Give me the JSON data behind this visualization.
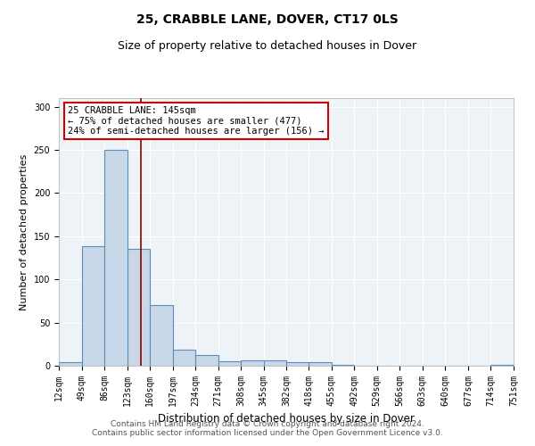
{
  "title": "25, CRABBLE LANE, DOVER, CT17 0LS",
  "subtitle": "Size of property relative to detached houses in Dover",
  "xlabel": "Distribution of detached houses by size in Dover",
  "ylabel": "Number of detached properties",
  "bin_edges": [
    12,
    49,
    86,
    123,
    160,
    197,
    234,
    271,
    308,
    345,
    382,
    418,
    455,
    492,
    529,
    566,
    603,
    640,
    677,
    714,
    751
  ],
  "bar_heights": [
    4,
    138,
    250,
    135,
    70,
    19,
    12,
    5,
    6,
    6,
    4,
    4,
    1,
    0,
    0,
    0,
    0,
    0,
    0,
    1
  ],
  "bar_color": "#c8d8e8",
  "bar_edge_color": "#5b8db8",
  "bar_linewidth": 0.8,
  "vline_x": 145,
  "vline_color": "#8b0000",
  "vline_linewidth": 1.2,
  "annotation_text": "25 CRABBLE LANE: 145sqm\n← 75% of detached houses are smaller (477)\n24% of semi-detached houses are larger (156) →",
  "annotation_box_color": "#ffffff",
  "annotation_box_edgecolor": "#cc0000",
  "annotation_fontsize": 7.5,
  "title_fontsize": 10,
  "subtitle_fontsize": 9,
  "xlabel_fontsize": 8.5,
  "ylabel_fontsize": 8,
  "tick_fontsize": 7,
  "footer_text": "Contains HM Land Registry data © Crown copyright and database right 2024.\nContains public sector information licensed under the Open Government Licence v3.0.",
  "footer_fontsize": 6.5,
  "ylim": [
    0,
    310
  ],
  "background_color": "#ffffff",
  "plot_background_color": "#eef3f8",
  "grid_color": "#ffffff",
  "tick_labels": [
    "12sqm",
    "49sqm",
    "86sqm",
    "123sqm",
    "160sqm",
    "197sqm",
    "234sqm",
    "271sqm",
    "308sqm",
    "345sqm",
    "382sqm",
    "418sqm",
    "455sqm",
    "492sqm",
    "529sqm",
    "566sqm",
    "603sqm",
    "640sqm",
    "677sqm",
    "714sqm",
    "751sqm"
  ]
}
